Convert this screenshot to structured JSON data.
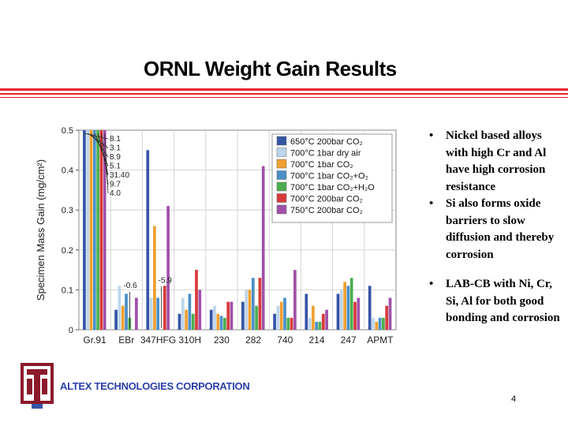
{
  "slide": {
    "title": "ORNL Weight Gain Results",
    "company": "ALTEX TECHNOLOGIES CORPORATION",
    "page_number": "4",
    "bullets": [
      "Nickel based alloys with high Cr and Al have high corrosion resistance",
      "Si also forms oxide barriers to slow diffusion and thereby corrosion",
      "LAB-CB with Ni, Cr, Si, Al for both good bonding and corrosion"
    ],
    "accent_color": "#e8212a",
    "logo_color": "#8b1a2b"
  },
  "chart_data": {
    "type": "bar",
    "xlabel": "",
    "ylabel": "Specimen Mass Gain (mg/cm²)",
    "ylim": [
      0,
      0.5
    ],
    "yticks": [
      "0",
      "0.1",
      "0.2",
      "0.3",
      "0.4",
      "0.5"
    ],
    "grid": true,
    "legend_position": "top-right",
    "categories": [
      "Gr.91",
      "EBr",
      "347HFG",
      "310H",
      "230",
      "282",
      "740",
      "214",
      "247",
      "APMT"
    ],
    "series": [
      {
        "name": "650°C 200bar CO₂",
        "color": "#3555a5",
        "values": [
          0.5,
          0.05,
          0.45,
          0.04,
          0.05,
          0.07,
          0.04,
          0.09,
          0.09,
          0.11
        ]
      },
      {
        "name": "700°C 1bar dry air",
        "color": "#bcd6ec",
        "values": [
          0.5,
          0.11,
          0.08,
          0.08,
          0.06,
          0.1,
          0.06,
          0.03,
          0.1,
          0.03
        ]
      },
      {
        "name": "700°C 1bar CO₂",
        "color": "#f0a030",
        "values": [
          0.5,
          0.06,
          0.26,
          0.05,
          0.04,
          0.1,
          0.07,
          0.06,
          0.12,
          0.02
        ]
      },
      {
        "name": "700°C 1bar CO₂+O₂",
        "color": "#4a90c8",
        "values": [
          0.5,
          0.09,
          0.08,
          0.09,
          0.035,
          0.13,
          0.08,
          0.02,
          0.11,
          0.03
        ]
      },
      {
        "name": "700°C 1bar CO₂+H₂O",
        "color": "#4cae50",
        "values": [
          0.5,
          0.03,
          0.0,
          0.04,
          0.03,
          0.06,
          0.03,
          0.02,
          0.13,
          0.03
        ]
      },
      {
        "name": "700°C 200bar CO₂",
        "color": "#d83a3a",
        "values": [
          0.5,
          0.0,
          0.11,
          0.15,
          0.07,
          0.13,
          0.03,
          0.04,
          0.07,
          0.06
        ]
      },
      {
        "name": "750°C 200bar CO₂",
        "color": "#a050a8",
        "values": [
          0.5,
          0.08,
          0.31,
          0.1,
          0.07,
          0.41,
          0.15,
          0.05,
          0.08,
          0.08
        ]
      }
    ],
    "annotations": [
      "8.1",
      "3.1",
      "8.9",
      "5.1",
      "31.40",
      "9.7",
      "4.0",
      "-0.6",
      "-5.9"
    ]
  }
}
